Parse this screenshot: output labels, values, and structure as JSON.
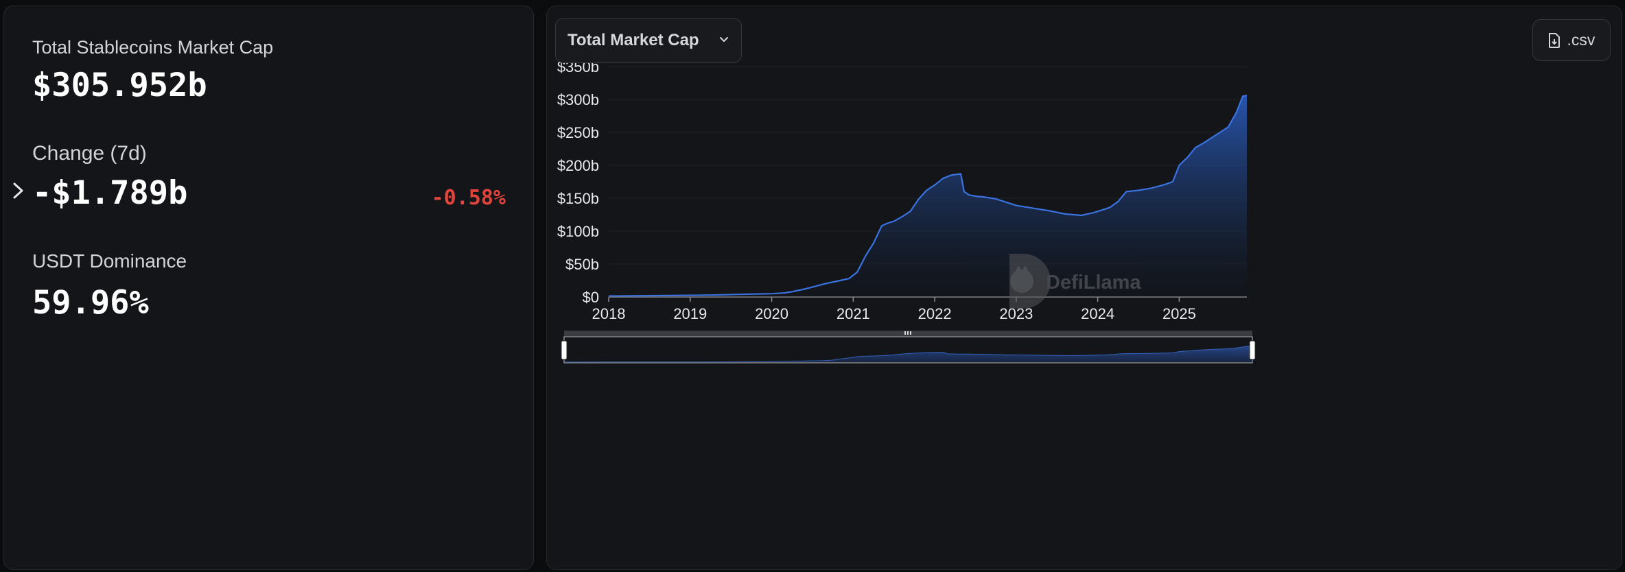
{
  "stats": {
    "market_cap_label": "Total Stablecoins Market Cap",
    "market_cap_value": "$305.952b",
    "change_label": "Change (7d)",
    "change_value": "-$1.789b",
    "change_percent": "-0.58%",
    "dominance_label": "USDT Dominance",
    "dominance_value": "59.96%"
  },
  "toolbar": {
    "metric_selected": "Total Market Cap",
    "csv_label": ".csv"
  },
  "watermark": "DefiLlama",
  "colors": {
    "series_line": "#3a73e0",
    "negative": "#e0443c"
  },
  "chart_data": {
    "type": "area",
    "series": [
      {
        "x": [
          2018.0,
          2018.5,
          2019.0,
          2019.3,
          2019.6,
          2020.0,
          2020.15,
          2020.25,
          2020.4,
          2020.5,
          2020.65,
          2020.8,
          2020.95,
          2021.05,
          2021.15,
          2021.25,
          2021.35,
          2021.42,
          2021.5,
          2021.6,
          2021.7,
          2021.8,
          2021.9,
          2022.0,
          2022.1,
          2022.2,
          2022.32,
          2022.36,
          2022.42,
          2022.5,
          2022.6,
          2022.75,
          2022.85,
          2023.0,
          2023.2,
          2023.4,
          2023.6,
          2023.8,
          2023.95,
          2024.05,
          2024.15,
          2024.25,
          2024.35,
          2024.5,
          2024.65,
          2024.8,
          2024.85,
          2024.92,
          2025.0,
          2025.1,
          2025.2,
          2025.3,
          2025.4,
          2025.5,
          2025.6,
          2025.7,
          2025.78,
          2025.83
        ],
        "y": [
          1.5,
          2,
          2.5,
          3,
          4,
          5,
          6,
          8,
          12,
          15,
          20,
          24,
          28,
          38,
          62,
          82,
          108,
          112,
          115,
          122,
          130,
          148,
          162,
          170,
          180,
          185,
          187,
          160,
          155,
          153,
          152,
          149,
          145,
          139,
          135,
          131,
          126,
          124,
          128,
          132,
          136,
          145,
          160,
          162,
          165,
          170,
          172,
          175,
          200,
          212,
          227,
          234,
          242,
          250,
          258,
          280,
          305,
          306
        ]
      }
    ],
    "xlim": [
      2018,
      2025.83
    ],
    "ylim": [
      0,
      350
    ],
    "x_ticks": [
      "2018",
      "2019",
      "2020",
      "2021",
      "2022",
      "2023",
      "2024",
      "2025"
    ],
    "y_ticks": [
      "$0",
      "$50b",
      "$100b",
      "$150b",
      "$200b",
      "$250b",
      "$300b",
      "$350b"
    ],
    "grid": true,
    "xlabel": "",
    "ylabel": "",
    "title": ""
  }
}
